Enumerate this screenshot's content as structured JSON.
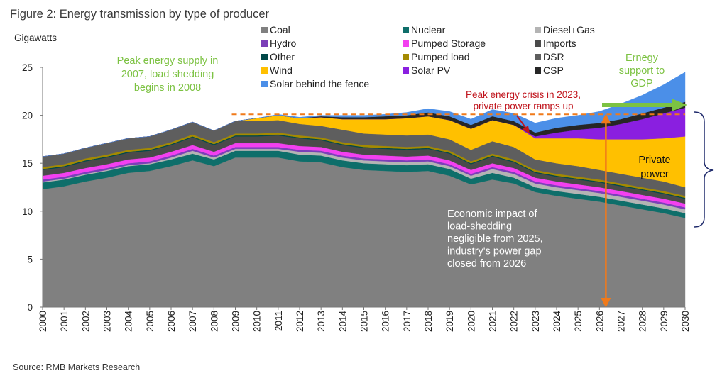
{
  "chart_data": {
    "type": "area",
    "title": "Figure 2: Energy transmission by type of producer",
    "ylabel": "Gigawatts",
    "xlim": [
      2000,
      2030
    ],
    "ylim": [
      0,
      25
    ],
    "yticks": [
      "0",
      "5",
      "10",
      "15",
      "20",
      "25"
    ],
    "xticks": [
      "2000",
      "2001",
      "2002",
      "2003",
      "2004",
      "2005",
      "2006",
      "2007",
      "2008",
      "2009",
      "2010",
      "2011",
      "2012",
      "2013",
      "2014",
      "2015",
      "2016",
      "2017",
      "2018",
      "2019",
      "2020",
      "2021",
      "2022",
      "2023",
      "2024",
      "2025",
      "2026",
      "2027",
      "2028",
      "2029",
      "2030"
    ],
    "x": [
      2000,
      2001,
      2002,
      2003,
      2004,
      2005,
      2006,
      2007,
      2008,
      2009,
      2010,
      2011,
      2012,
      2013,
      2014,
      2015,
      2016,
      2017,
      2018,
      2019,
      2020,
      2021,
      2022,
      2023,
      2024,
      2025,
      2026,
      2027,
      2028,
      2029,
      2030
    ],
    "series": [
      {
        "name": "Coal",
        "color": "#808080",
        "values": [
          12.3,
          12.6,
          13.1,
          13.5,
          14.0,
          14.2,
          14.7,
          15.3,
          14.7,
          15.6,
          15.6,
          15.6,
          15.2,
          15.1,
          14.6,
          14.3,
          14.2,
          14.1,
          14.2,
          13.7,
          12.8,
          13.3,
          12.9,
          12.0,
          11.6,
          11.3,
          11.0,
          10.6,
          10.2,
          9.8,
          9.3
        ]
      },
      {
        "name": "Nuclear",
        "color": "#0e6e6a",
        "values": [
          0.7,
          0.7,
          0.7,
          0.7,
          0.7,
          0.7,
          0.7,
          0.7,
          0.7,
          0.7,
          0.7,
          0.7,
          0.7,
          0.7,
          0.7,
          0.7,
          0.7,
          0.7,
          0.7,
          0.7,
          0.6,
          0.7,
          0.6,
          0.5,
          0.5,
          0.5,
          0.5,
          0.5,
          0.5,
          0.5,
          0.5
        ]
      },
      {
        "name": "Diesel+Gas",
        "color": "#b4b4b4",
        "values": [
          0.1,
          0.1,
          0.1,
          0.1,
          0.1,
          0.1,
          0.2,
          0.3,
          0.2,
          0.2,
          0.2,
          0.2,
          0.3,
          0.3,
          0.3,
          0.3,
          0.3,
          0.3,
          0.3,
          0.3,
          0.3,
          0.4,
          0.4,
          0.4,
          0.4,
          0.4,
          0.4,
          0.4,
          0.4,
          0.4,
          0.4
        ]
      },
      {
        "name": "Hydro",
        "color": "#7b3fb8",
        "values": [
          0.2,
          0.2,
          0.2,
          0.2,
          0.2,
          0.2,
          0.2,
          0.2,
          0.2,
          0.2,
          0.2,
          0.2,
          0.2,
          0.2,
          0.2,
          0.2,
          0.2,
          0.2,
          0.2,
          0.2,
          0.2,
          0.2,
          0.2,
          0.2,
          0.2,
          0.2,
          0.2,
          0.2,
          0.2,
          0.2,
          0.2
        ]
      },
      {
        "name": "Pumped Storage",
        "color": "#f340f0",
        "values": [
          0.4,
          0.4,
          0.4,
          0.4,
          0.4,
          0.4,
          0.4,
          0.4,
          0.4,
          0.4,
          0.4,
          0.4,
          0.4,
          0.4,
          0.4,
          0.4,
          0.4,
          0.4,
          0.4,
          0.4,
          0.4,
          0.4,
          0.4,
          0.4,
          0.4,
          0.4,
          0.4,
          0.4,
          0.4,
          0.4,
          0.4
        ]
      },
      {
        "name": "Imports",
        "color": "#4a4a4a",
        "values": [
          0.6,
          0.6,
          0.7,
          0.7,
          0.7,
          0.7,
          0.7,
          0.8,
          0.7,
          0.7,
          0.7,
          0.8,
          0.8,
          0.7,
          0.7,
          0.7,
          0.7,
          0.7,
          0.7,
          0.7,
          0.6,
          0.7,
          0.6,
          0.5,
          0.5,
          0.5,
          0.5,
          0.5,
          0.5,
          0.5,
          0.5
        ]
      },
      {
        "name": "Other",
        "color": "#004848",
        "values": [
          0.1,
          0.1,
          0.1,
          0.1,
          0.1,
          0.1,
          0.1,
          0.1,
          0.1,
          0.1,
          0.1,
          0.1,
          0.1,
          0.1,
          0.1,
          0.1,
          0.1,
          0.1,
          0.1,
          0.1,
          0.1,
          0.1,
          0.1,
          0.1,
          0.1,
          0.1,
          0.1,
          0.1,
          0.1,
          0.1,
          0.1
        ]
      },
      {
        "name": "Pumped load",
        "color": "#a48a00",
        "values": [
          0.2,
          0.2,
          0.2,
          0.2,
          0.2,
          0.2,
          0.2,
          0.2,
          0.2,
          0.2,
          0.2,
          0.2,
          0.2,
          0.2,
          0.2,
          0.2,
          0.2,
          0.2,
          0.2,
          0.2,
          0.2,
          0.2,
          0.2,
          0.2,
          0.2,
          0.2,
          0.2,
          0.2,
          0.2,
          0.2,
          0.2
        ]
      },
      {
        "name": "DSR",
        "color": "#5e5e5e",
        "values": [
          1.1,
          1.1,
          1.1,
          1.2,
          1.2,
          1.2,
          1.3,
          1.3,
          1.2,
          1.3,
          1.3,
          1.3,
          1.2,
          1.2,
          1.3,
          1.2,
          1.2,
          1.2,
          1.2,
          1.2,
          1.2,
          1.3,
          1.3,
          1.1,
          1.1,
          1.1,
          1.0,
          1.0,
          1.0,
          1.0,
          0.9
        ]
      },
      {
        "name": "Wind",
        "color": "#ffc000",
        "values": [
          0.0,
          0.0,
          0.0,
          0.0,
          0.0,
          0.0,
          0.0,
          0.0,
          0.0,
          0.0,
          0.3,
          0.5,
          0.6,
          0.9,
          1.1,
          1.5,
          1.6,
          1.8,
          1.9,
          2.0,
          2.2,
          2.2,
          2.3,
          2.2,
          2.6,
          2.9,
          3.2,
          3.6,
          4.0,
          4.5,
          5.3
        ]
      },
      {
        "name": "Solar PV",
        "color": "#8a1fe0",
        "values": [
          0.0,
          0.0,
          0.0,
          0.0,
          0.0,
          0.0,
          0.0,
          0.0,
          0.0,
          0.0,
          0.0,
          0.0,
          0.0,
          0.0,
          0.0,
          0.0,
          0.0,
          0.0,
          0.0,
          0.0,
          0.0,
          0.0,
          0.0,
          0.2,
          0.6,
          0.9,
          1.2,
          1.6,
          2.1,
          2.6,
          3.0
        ]
      },
      {
        "name": "CSP",
        "color": "#262626",
        "values": [
          0.0,
          0.0,
          0.0,
          0.0,
          0.0,
          0.0,
          0.0,
          0.0,
          0.0,
          0.0,
          0.0,
          0.0,
          0.0,
          0.1,
          0.2,
          0.2,
          0.3,
          0.3,
          0.4,
          0.4,
          0.4,
          0.4,
          0.4,
          0.4,
          0.5,
          0.5,
          0.5,
          0.5,
          0.6,
          0.6,
          0.6
        ]
      },
      {
        "name": "Solar behind the fence",
        "color": "#4b8fe8",
        "values": [
          0.0,
          0.0,
          0.0,
          0.0,
          0.0,
          0.0,
          0.0,
          0.0,
          0.0,
          0.0,
          0.0,
          0.1,
          0.1,
          0.1,
          0.2,
          0.2,
          0.2,
          0.3,
          0.4,
          0.5,
          0.6,
          0.7,
          0.8,
          1.0,
          1.0,
          1.0,
          1.2,
          1.6,
          1.9,
          2.4,
          3.1
        ]
      }
    ],
    "legend": {
      "placement": "top",
      "columns": [
        [
          "Coal",
          "Hydro",
          "Other",
          "Wind",
          "Solar behind the fence"
        ],
        [
          "Nuclear",
          "Pumped Storage",
          "Pumped load",
          "Solar PV"
        ],
        [
          "Diesel+Gas",
          "Imports",
          "DSR",
          "CSP"
        ]
      ]
    },
    "reference_line": {
      "y": 20.1,
      "from_x": 2009,
      "to_x": 2030,
      "color": "#f07a1a",
      "style": "dashed"
    },
    "vertical_arrow": {
      "x": 2026.3,
      "y_from": 0,
      "y_to": 20.1,
      "color": "#f07a1a"
    },
    "annotations": {
      "peak_supply": [
        "Peak energy supply in",
        "2007, load shedding",
        "begins in 2008"
      ],
      "peak_crisis": [
        "Peak energy crisis  in 2023,",
        "private power ramps up"
      ],
      "gdp_support": [
        "Ernegy",
        "support to",
        "GDP"
      ],
      "private_power": [
        "Private",
        "power"
      ],
      "economic_impact": [
        "Economic impact of",
        "load-shedding",
        "negligible from 2025,",
        "industry's power gap",
        "closed from 2026"
      ]
    },
    "annotation_colors": {
      "green": "#7cc242",
      "red": "#c0141c",
      "navy": "#1f2a6b"
    },
    "source": "Source: RMB Markets Research"
  }
}
